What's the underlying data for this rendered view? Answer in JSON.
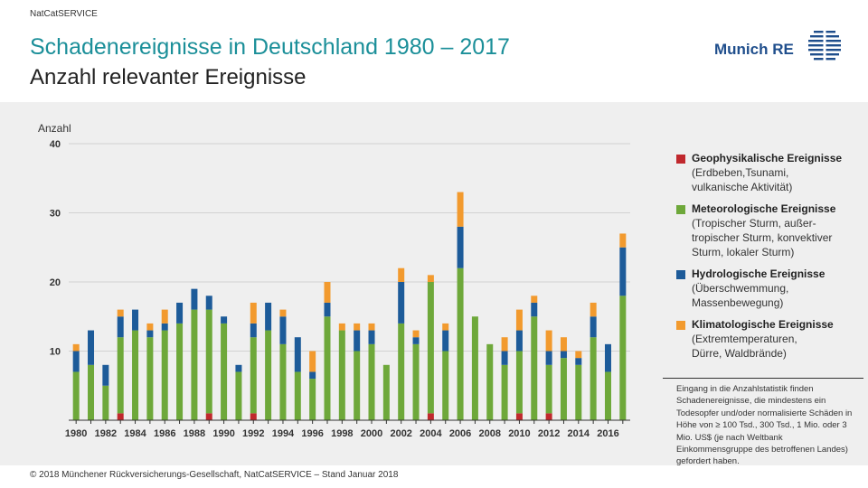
{
  "header": {
    "source": "NatCatSERVICE",
    "title": "Schadenereignisse in Deutschland 1980 – 2017",
    "subtitle": "Anzahl relevanter Ereignisse",
    "logo_text": "Munich RE"
  },
  "chart_data": {
    "type": "bar",
    "stacked": true,
    "ylabel": "Anzahl",
    "ylim": [
      0,
      40
    ],
    "yticks": [
      10,
      20,
      30,
      40
    ],
    "grid": true,
    "legend_position": "right",
    "categories": [
      1980,
      1981,
      1982,
      1983,
      1984,
      1985,
      1986,
      1987,
      1988,
      1989,
      1990,
      1991,
      1992,
      1993,
      1994,
      1995,
      1996,
      1997,
      1998,
      1999,
      2000,
      2001,
      2002,
      2003,
      2004,
      2005,
      2006,
      2007,
      2008,
      2009,
      2010,
      2011,
      2012,
      2013,
      2014,
      2015,
      2016,
      2017
    ],
    "xtick_labels": [
      "1980",
      "1982",
      "1984",
      "1986",
      "1988",
      "1990",
      "1992",
      "1994",
      "1996",
      "1998",
      "2000",
      "2002",
      "2004",
      "2006",
      "2008",
      "2010",
      "2012",
      "2014",
      "2016"
    ],
    "series": [
      {
        "name": "Geophysikalische Ereignisse",
        "color": "#c0282d",
        "values": [
          0,
          0,
          0,
          1,
          0,
          0,
          0,
          0,
          0,
          1,
          0,
          0,
          1,
          0,
          0,
          0,
          0,
          0,
          0,
          0,
          0,
          0,
          0,
          0,
          1,
          0,
          0,
          0,
          0,
          0,
          1,
          0,
          1,
          0,
          0,
          0,
          0,
          0
        ]
      },
      {
        "name": "Meteorologische Ereignisse",
        "color": "#6ea83a",
        "values": [
          7,
          8,
          5,
          11,
          13,
          12,
          13,
          14,
          16,
          15,
          14,
          7,
          11,
          13,
          11,
          7,
          6,
          15,
          13,
          10,
          11,
          8,
          14,
          11,
          19,
          10,
          22,
          15,
          11,
          8,
          9,
          15,
          7,
          9,
          8,
          12,
          7,
          18
        ]
      },
      {
        "name": "Hydrologische Ereignisse",
        "color": "#1d5b99",
        "values": [
          3,
          5,
          3,
          3,
          3,
          1,
          1,
          3,
          3,
          2,
          1,
          1,
          2,
          4,
          4,
          5,
          1,
          2,
          0,
          3,
          2,
          0,
          6,
          1,
          0,
          3,
          6,
          0,
          0,
          2,
          3,
          2,
          2,
          1,
          1,
          3,
          4,
          7
        ]
      },
      {
        "name": "Klimatologische Ereignisse",
        "color": "#f29a2e",
        "values": [
          1,
          0,
          0,
          1,
          0,
          1,
          2,
          0,
          0,
          0,
          0,
          0,
          3,
          0,
          1,
          0,
          3,
          3,
          1,
          1,
          1,
          0,
          2,
          1,
          1,
          1,
          5,
          0,
          0,
          2,
          3,
          1,
          3,
          2,
          1,
          2,
          0,
          2
        ]
      }
    ]
  },
  "legend": [
    {
      "title": "Geophysikalische Ereignisse",
      "desc": [
        "(Erdbeben,Tsunami,",
        "vulkanische Aktivität)"
      ],
      "color": "#c0282d"
    },
    {
      "title": "Meteorologische Ereignisse",
      "desc": [
        "(Tropischer Sturm, außer-",
        "tropischer Sturm, konvektiver",
        "Sturm, lokaler Sturm)"
      ],
      "color": "#6ea83a"
    },
    {
      "title": "Hydrologische Ereignisse",
      "desc": [
        "(Überschwemmung,",
        "Massenbewegung)"
      ],
      "color": "#1d5b99"
    },
    {
      "title": "Klimatologische Ereignisse",
      "desc": [
        "(Extremtemperaturen,",
        "Dürre, Waldbrände)"
      ],
      "color": "#f29a2e"
    }
  ],
  "note": "Eingang in die Anzahlstatistik finden Schadenereignisse, die mindestens ein Todesopfer und/oder normalisierte Schäden in Höhe von ≥ 100 Tsd., 300 Tsd., 1 Mio. oder 3 Mio. US$ (je nach Weltbank Einkommensgruppe des betroffenen Landes) gefordert haben.",
  "footer": "© 2018 Münchener Rückversicherungs-Gesellschaft, NatCatSERVICE – Stand Januar 2018"
}
